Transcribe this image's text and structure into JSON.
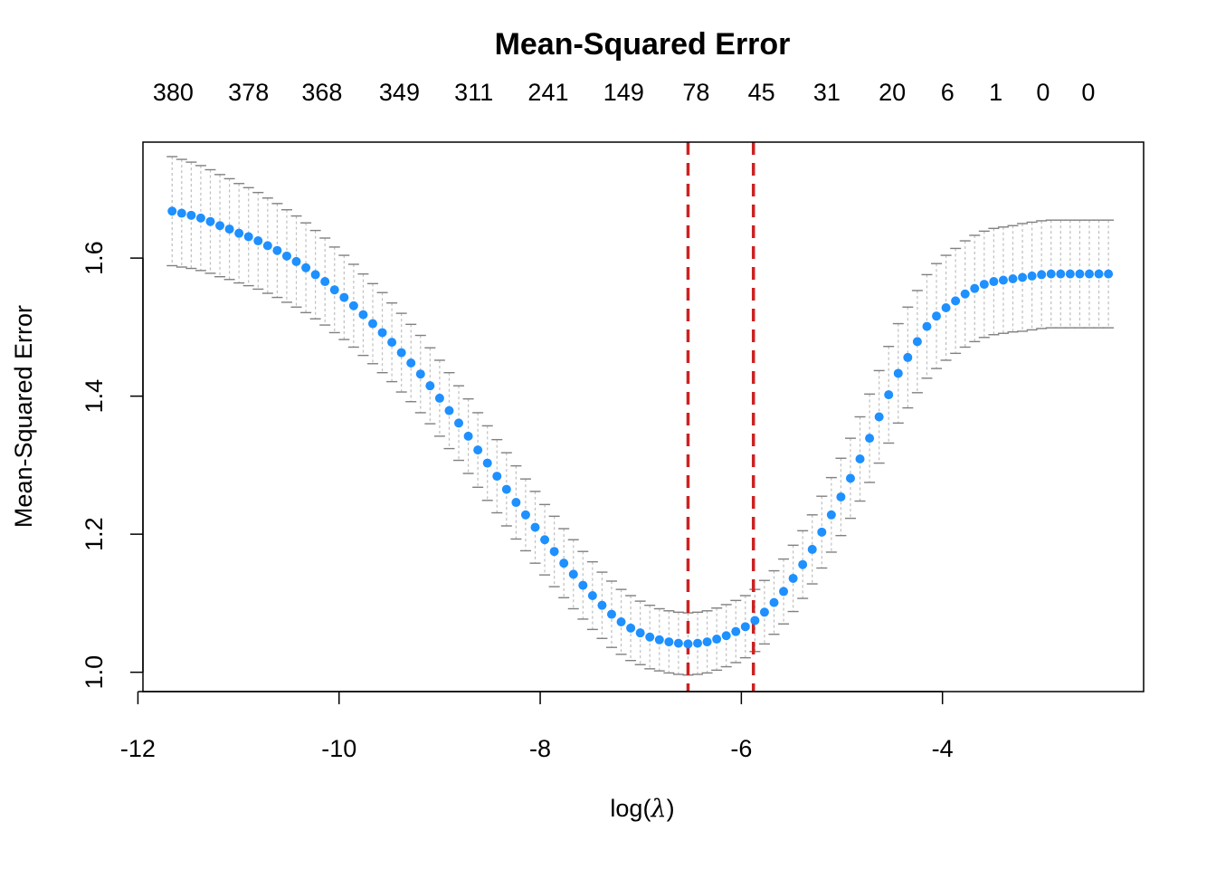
{
  "chart_data": {
    "type": "scatter",
    "title": "Mean-Squared Error",
    "xlabel_prefix": "log(",
    "xlabel_symbol": "λ",
    "xlabel_suffix": ")",
    "ylabel": "Mean-Squared Error",
    "xlim": [
      -11.95,
      -2.0
    ],
    "ylim": [
      0.972,
      1.768
    ],
    "x_ticks": [
      -12,
      -10,
      -8,
      -6,
      -4
    ],
    "x_tick_labels": [
      "-12",
      "-10",
      "-8",
      "-6",
      "-4"
    ],
    "y_ticks": [
      1.0,
      1.2,
      1.4,
      1.6
    ],
    "y_tick_labels": [
      "1.0",
      "1.2",
      "1.4",
      "1.6"
    ],
    "top_axis_ticks": [
      -11.65,
      -10.9,
      -10.17,
      -9.4,
      -8.66,
      -7.92,
      -7.17,
      -6.45,
      -5.8,
      -5.15,
      -4.5,
      -3.95,
      -3.47,
      -3.0,
      -2.55
    ],
    "top_axis_labels": [
      "380",
      "378",
      "368",
      "349",
      "311",
      "241",
      "149",
      "78",
      "45",
      "31",
      "20",
      "6",
      "1",
      "0",
      "0"
    ],
    "vlines": [
      -6.53,
      -5.88
    ],
    "x": [
      -11.66,
      -11.565,
      -11.47,
      -11.375,
      -11.28,
      -11.185,
      -11.09,
      -10.995,
      -10.9,
      -10.805,
      -10.71,
      -10.615,
      -10.52,
      -10.425,
      -10.33,
      -10.235,
      -10.14,
      -10.045,
      -9.95,
      -9.855,
      -9.76,
      -9.665,
      -9.57,
      -9.475,
      -9.38,
      -9.285,
      -9.19,
      -9.095,
      -9.0,
      -8.905,
      -8.81,
      -8.715,
      -8.62,
      -8.525,
      -8.43,
      -8.335,
      -8.24,
      -8.145,
      -8.05,
      -7.955,
      -7.86,
      -7.765,
      -7.67,
      -7.575,
      -7.48,
      -7.385,
      -7.29,
      -7.195,
      -7.1,
      -7.005,
      -6.91,
      -6.815,
      -6.72,
      -6.625,
      -6.53,
      -6.435,
      -6.34,
      -6.245,
      -6.15,
      -6.055,
      -5.96,
      -5.865,
      -5.77,
      -5.675,
      -5.58,
      -5.485,
      -5.39,
      -5.295,
      -5.2,
      -5.105,
      -5.01,
      -4.915,
      -4.82,
      -4.725,
      -4.63,
      -4.535,
      -4.44,
      -4.345,
      -4.25,
      -4.155,
      -4.06,
      -3.965,
      -3.87,
      -3.775,
      -3.68,
      -3.585,
      -3.49,
      -3.395,
      -3.3,
      -3.205,
      -3.11,
      -3.015,
      -2.92,
      -2.825,
      -2.73,
      -2.635,
      -2.54,
      -2.445,
      -2.35
    ],
    "y": [
      1.668,
      1.665,
      1.662,
      1.658,
      1.653,
      1.647,
      1.642,
      1.636,
      1.631,
      1.625,
      1.618,
      1.611,
      1.603,
      1.595,
      1.586,
      1.576,
      1.566,
      1.554,
      1.543,
      1.531,
      1.518,
      1.505,
      1.492,
      1.478,
      1.463,
      1.448,
      1.432,
      1.415,
      1.397,
      1.379,
      1.361,
      1.342,
      1.322,
      1.303,
      1.284,
      1.265,
      1.246,
      1.228,
      1.21,
      1.192,
      1.175,
      1.158,
      1.142,
      1.126,
      1.111,
      1.097,
      1.084,
      1.073,
      1.064,
      1.057,
      1.051,
      1.047,
      1.044,
      1.042,
      1.041,
      1.042,
      1.044,
      1.048,
      1.053,
      1.059,
      1.066,
      1.075,
      1.087,
      1.101,
      1.117,
      1.136,
      1.156,
      1.178,
      1.203,
      1.228,
      1.254,
      1.281,
      1.309,
      1.339,
      1.37,
      1.402,
      1.433,
      1.456,
      1.479,
      1.501,
      1.516,
      1.528,
      1.538,
      1.548,
      1.556,
      1.562,
      1.566,
      1.568,
      1.57,
      1.572,
      1.574,
      1.576,
      1.577,
      1.577,
      1.577,
      1.577,
      1.577,
      1.577,
      1.577
    ],
    "se": [
      0.079,
      0.078,
      0.077,
      0.076,
      0.075,
      0.074,
      0.073,
      0.072,
      0.071,
      0.07,
      0.069,
      0.068,
      0.067,
      0.066,
      0.065,
      0.064,
      0.063,
      0.062,
      0.061,
      0.06,
      0.059,
      0.058,
      0.058,
      0.057,
      0.057,
      0.056,
      0.056,
      0.055,
      0.055,
      0.055,
      0.054,
      0.054,
      0.054,
      0.054,
      0.053,
      0.053,
      0.053,
      0.052,
      0.052,
      0.051,
      0.051,
      0.05,
      0.05,
      0.049,
      0.049,
      0.048,
      0.048,
      0.047,
      0.047,
      0.046,
      0.046,
      0.045,
      0.045,
      0.045,
      0.045,
      0.045,
      0.045,
      0.045,
      0.045,
      0.045,
      0.045,
      0.045,
      0.046,
      0.046,
      0.047,
      0.048,
      0.049,
      0.05,
      0.052,
      0.054,
      0.056,
      0.058,
      0.061,
      0.064,
      0.067,
      0.07,
      0.072,
      0.073,
      0.074,
      0.075,
      0.076,
      0.076,
      0.076,
      0.077,
      0.077,
      0.077,
      0.077,
      0.077,
      0.077,
      0.078,
      0.078,
      0.078,
      0.078,
      0.078,
      0.078,
      0.078,
      0.078,
      0.078,
      0.078
    ],
    "colors": {
      "points": "#1E90FF",
      "vlines": "#CC2222",
      "error_bars": "#BEBEBE",
      "error_caps": "#808080",
      "frame": "#000000"
    },
    "grid": false
  }
}
